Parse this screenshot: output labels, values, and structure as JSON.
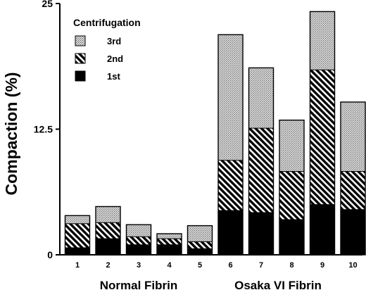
{
  "chart_data": {
    "type": "bar",
    "stacked": true,
    "categories": [
      "1",
      "2",
      "3",
      "4",
      "5",
      "6",
      "7",
      "8",
      "9",
      "10"
    ],
    "groups": [
      {
        "label": "Normal Fibrin",
        "categories": [
          "1",
          "2",
          "3",
          "4",
          "5"
        ]
      },
      {
        "label": "Osaka VI Fibrin",
        "categories": [
          "6",
          "7",
          "8",
          "9",
          "10"
        ]
      }
    ],
    "series": [
      {
        "name": "1st",
        "values": [
          0.7,
          1.6,
          1.0,
          1.0,
          0.6,
          4.4,
          4.2,
          3.5,
          5.0,
          4.5
        ],
        "color": "#000000",
        "pattern": "solid"
      },
      {
        "name": "2nd",
        "values": [
          2.4,
          1.6,
          0.8,
          0.6,
          0.7,
          5.0,
          8.4,
          4.8,
          13.4,
          3.8
        ],
        "color": "#000000",
        "pattern": "hatch"
      },
      {
        "name": "3rd",
        "values": [
          0.8,
          1.6,
          1.2,
          0.5,
          1.6,
          12.5,
          6.0,
          5.1,
          5.8,
          6.9
        ],
        "color": "#bfbfbf",
        "pattern": "stipple"
      }
    ],
    "legend": {
      "title": "Centrifugation",
      "order": [
        "3rd",
        "2nd",
        "1st"
      ],
      "position": "top-left"
    },
    "ylabel": "Compaction (%)",
    "xlabel": "",
    "ylim": [
      0,
      25
    ],
    "yticks": [
      "0",
      "12.5",
      "25"
    ],
    "grid": false
  }
}
